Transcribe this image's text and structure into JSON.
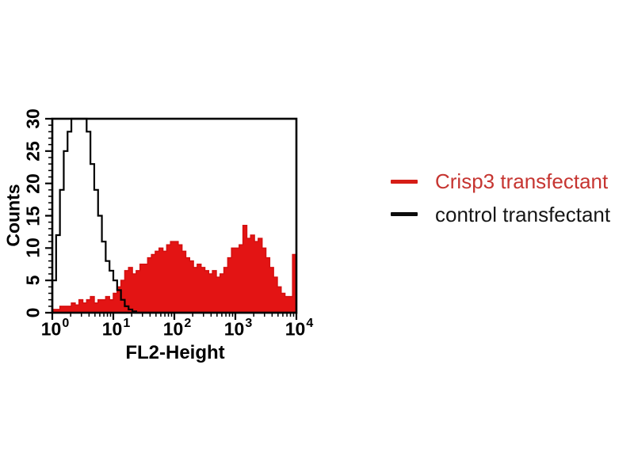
{
  "figure": {
    "background": "#ffffff",
    "accent_red": "#e31414",
    "line_black": "#000000"
  },
  "legend": {
    "items": [
      {
        "label": "Crisp3 transfectant",
        "text_color": "#c63531",
        "dash_color": "#d61d16"
      },
      {
        "label": "control transfectant",
        "text_color": "#161616",
        "dash_color": "#0c0c0c"
      }
    ]
  },
  "chart_data": {
    "type": "area",
    "subtype": "flow-cytometry-step-histogram",
    "title": "",
    "xlabel": "FL2-Height",
    "ylabel": "Counts",
    "x_scale": "log10",
    "x_tick_base": "10",
    "x_min_exponent": 0,
    "x_max_exponent": 4,
    "x_tick_exponents": [
      0,
      1,
      2,
      3,
      4
    ],
    "x_minor_tick_mantissas": [
      2,
      3,
      4,
      5,
      6,
      7,
      8,
      9
    ],
    "ylim": [
      0,
      30
    ],
    "y_ticks": [
      0,
      5,
      10,
      15,
      20,
      25,
      30
    ],
    "y_minor_step": 1,
    "grid": false,
    "legend_position": "right-outside",
    "bins_per_decade": 16,
    "series": [
      {
        "name": "Crisp3 transfectant",
        "style": "filled",
        "fill_color": "#e31414",
        "line_color": "#d40f0f",
        "values": [
          0.5,
          0.5,
          1,
          1,
          1,
          1.5,
          1.2,
          2,
          1.5,
          2,
          2.5,
          1.5,
          2,
          2,
          2.5,
          2,
          3,
          4,
          5,
          6.5,
          7,
          6,
          6.5,
          7.5,
          7.5,
          8.5,
          9,
          9.5,
          10,
          9.5,
          10.5,
          11,
          11,
          10.5,
          9.5,
          8.5,
          8,
          7,
          7.5,
          7,
          6.5,
          6,
          6.5,
          5.5,
          6,
          7,
          8.5,
          10,
          10,
          10.5,
          13.5,
          11.5,
          12,
          11,
          11.5,
          10,
          8.5,
          7,
          5.5,
          4,
          3,
          2.5,
          2.5,
          9
        ]
      },
      {
        "name": "control transfectant",
        "style": "open",
        "line_color": "#000000",
        "values": [
          5,
          12,
          19,
          25,
          28,
          30,
          30,
          30,
          30,
          28,
          23,
          19,
          15,
          11,
          8,
          6.5,
          5,
          3.5,
          2,
          1,
          0.5,
          0.2,
          0,
          0,
          0,
          0,
          0,
          0,
          0,
          0,
          0,
          0,
          0,
          0,
          0,
          0,
          0,
          0,
          0,
          0,
          0,
          0,
          0,
          0,
          0,
          0,
          0,
          0,
          0,
          0,
          0,
          0,
          0,
          0,
          0,
          0,
          0,
          0,
          0,
          0,
          0,
          0,
          0,
          0
        ]
      }
    ]
  }
}
